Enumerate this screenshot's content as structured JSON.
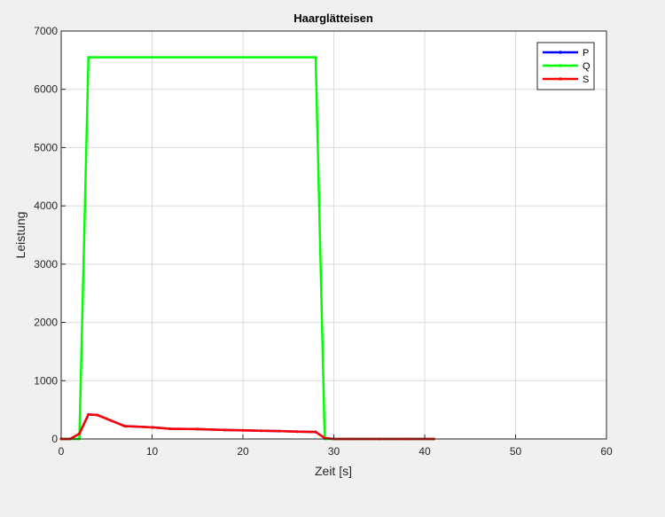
{
  "chart_data": {
    "type": "line",
    "title": "Haarglätteisen",
    "xlabel": "Zeit [s]",
    "ylabel": "Leistung",
    "xlim": [
      0,
      60
    ],
    "ylim": [
      0,
      7000
    ],
    "xticks": [
      0,
      10,
      20,
      30,
      40,
      50,
      60
    ],
    "yticks": [
      0,
      1000,
      2000,
      3000,
      4000,
      5000,
      6000,
      7000
    ],
    "grid": true,
    "legend_position": "top-right",
    "series": [
      {
        "name": "P",
        "color": "#0000ff",
        "x": [
          0,
          1,
          2,
          3,
          4,
          7,
          10,
          12,
          15,
          18,
          20,
          22,
          24,
          26,
          28,
          29,
          30,
          32,
          35,
          38,
          41
        ],
        "y": [
          0,
          0,
          90,
          420,
          410,
          220,
          200,
          175,
          170,
          155,
          148,
          140,
          135,
          125,
          120,
          15,
          0,
          0,
          0,
          0,
          0
        ]
      },
      {
        "name": "Q",
        "color": "#00ff00",
        "x": [
          0,
          1,
          2,
          3,
          28,
          29,
          30,
          41
        ],
        "y": [
          0,
          0,
          0,
          6550,
          6550,
          0,
          0,
          0
        ]
      },
      {
        "name": "S",
        "color": "#ff0000",
        "x": [
          0,
          1,
          2,
          3,
          4,
          7,
          10,
          12,
          15,
          18,
          20,
          22,
          24,
          26,
          28,
          29,
          30,
          32,
          35,
          38,
          41
        ],
        "y": [
          0,
          0,
          90,
          420,
          410,
          220,
          200,
          175,
          170,
          155,
          148,
          140,
          135,
          125,
          120,
          15,
          0,
          0,
          0,
          0,
          0
        ]
      }
    ]
  }
}
